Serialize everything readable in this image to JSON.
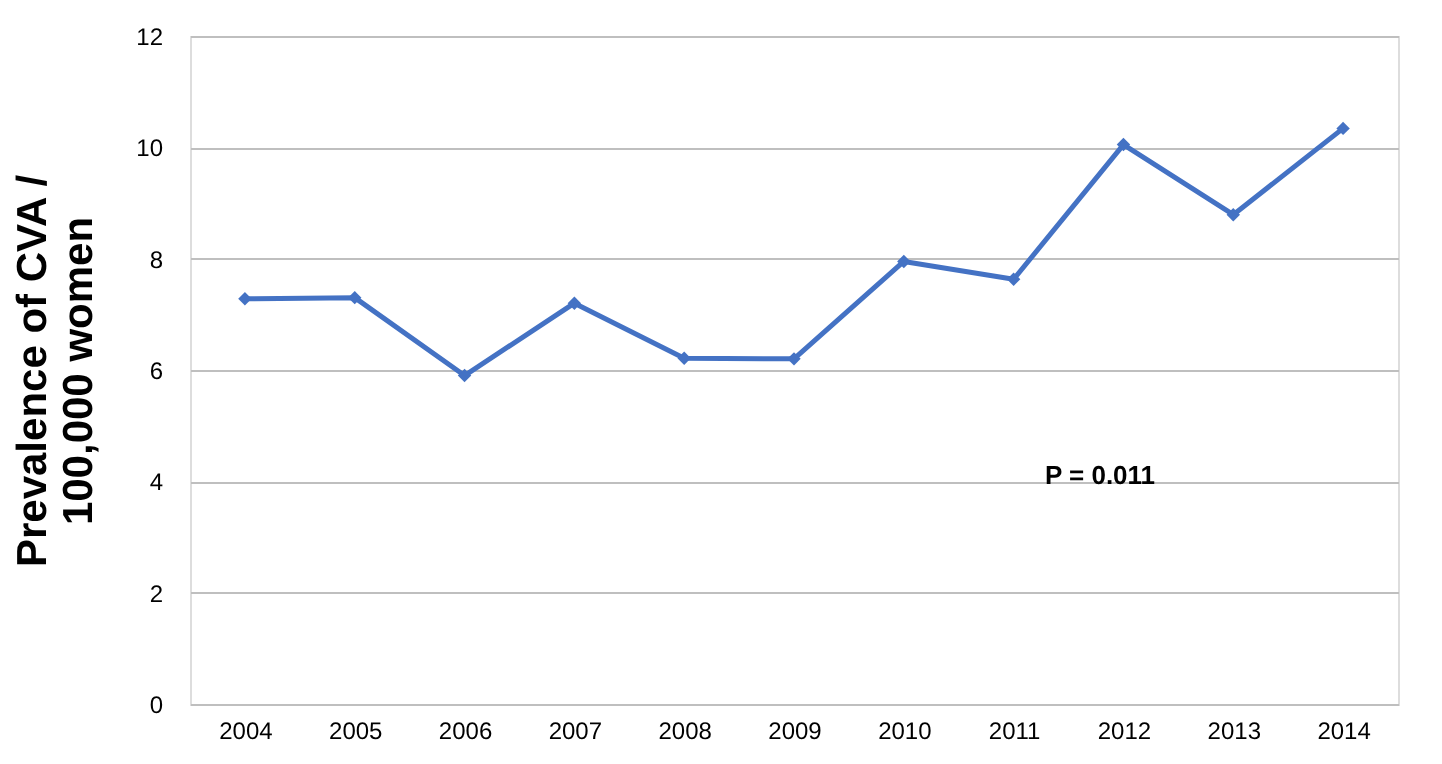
{
  "chart_data": {
    "type": "line",
    "ylabel": "Prevalence  of CVA /\n100,000 women",
    "categories": [
      "2004",
      "2005",
      "2006",
      "2007",
      "2008",
      "2009",
      "2010",
      "2011",
      "2012",
      "2013",
      "2014"
    ],
    "series": [
      {
        "color": "#4472c4",
        "values": [
          7.28,
          7.3,
          5.9,
          7.2,
          6.21,
          6.2,
          7.95,
          7.63,
          10.05,
          8.79,
          10.34
        ]
      }
    ],
    "ylim": [
      0,
      12
    ],
    "yticks": [
      0,
      2,
      4,
      6,
      8,
      10,
      12
    ],
    "grid": "y",
    "marker": "diamond",
    "line_style": "solid",
    "annotations": [
      "P = 0.011"
    ]
  }
}
